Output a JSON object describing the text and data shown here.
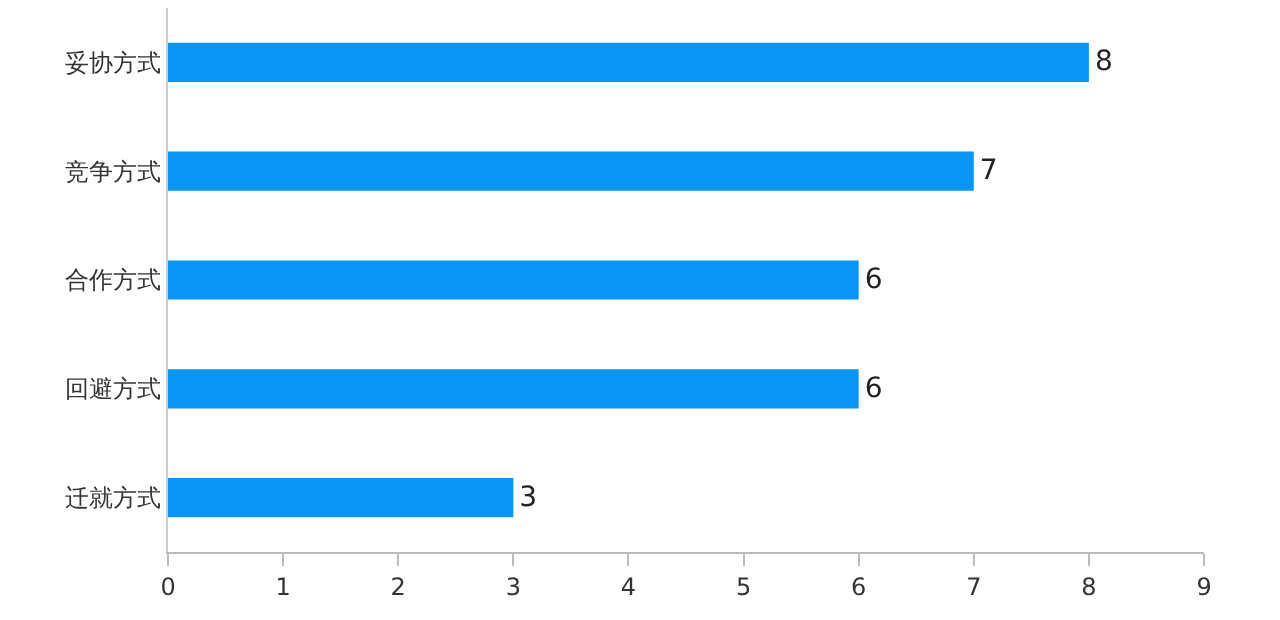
{
  "chart_data": {
    "type": "bar",
    "orientation": "horizontal",
    "categories": [
      "妥协方式",
      "竞争方式",
      "合作方式",
      "回避方式",
      "迁就方式"
    ],
    "values": [
      8,
      7,
      6,
      6,
      3
    ],
    "color": "#0a95f5",
    "xlim": [
      0,
      9
    ],
    "xticks": [
      0,
      1,
      2,
      3,
      4,
      5,
      6,
      7,
      8,
      9
    ],
    "data_labels": true,
    "grid": false
  }
}
